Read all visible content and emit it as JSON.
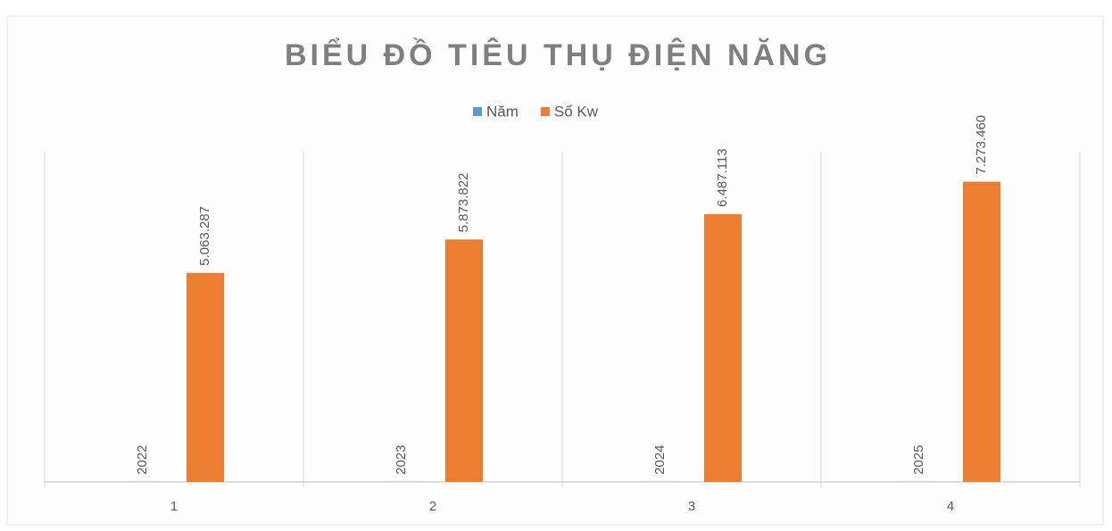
{
  "chart_data": {
    "type": "bar",
    "title": "BIỂU ĐỒ TIÊU THỤ ĐIỆN NĂNG",
    "categories": [
      "1",
      "2",
      "3",
      "4"
    ],
    "series": [
      {
        "name": "Năm",
        "color": "#5b9bd5",
        "values": [
          2022,
          2023,
          2024,
          2025
        ]
      },
      {
        "name": "Số Kw",
        "color": "#ed7d31",
        "values": [
          5063287,
          5873822,
          6487113,
          7273460
        ],
        "value_labels": [
          "5.063.287",
          "5.873.822",
          "6.487.113",
          "7.273.460"
        ]
      }
    ],
    "ylim": [
      0,
      8000000
    ],
    "legend": "top"
  }
}
